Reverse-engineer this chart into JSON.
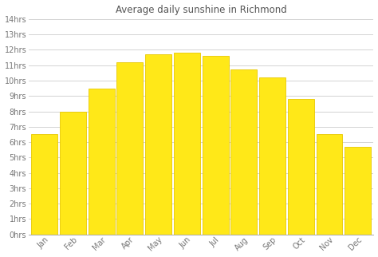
{
  "title": "Average daily sunshine in Richmond",
  "months": [
    "Jan",
    "Feb",
    "Mar",
    "Apr",
    "May",
    "Jun",
    "Jul",
    "Aug",
    "Sep",
    "Oct",
    "Nov",
    "Dec"
  ],
  "values": [
    6.5,
    8.0,
    9.5,
    11.2,
    11.7,
    11.8,
    11.6,
    10.7,
    10.2,
    8.8,
    6.5,
    5.7
  ],
  "bar_color": "#FFE818",
  "bar_edge_color": "#E8C800",
  "ylim": [
    0,
    14
  ],
  "ytick_values": [
    0,
    1,
    2,
    3,
    4,
    5,
    6,
    7,
    8,
    9,
    10,
    11,
    12,
    13,
    14
  ],
  "ytick_labels": [
    "0hrs",
    "1hrs",
    "2hrs",
    "3hrs",
    "4hrs",
    "5hrs",
    "6hrs",
    "7hrs",
    "8hrs",
    "9hrs",
    "10hrs",
    "11hrs",
    "12hrs",
    "13hrs",
    "14hrs"
  ],
  "background_color": "#ffffff",
  "grid_color": "#cccccc",
  "title_fontsize": 8.5,
  "tick_fontsize": 7,
  "title_color": "#555555",
  "tick_color": "#777777"
}
